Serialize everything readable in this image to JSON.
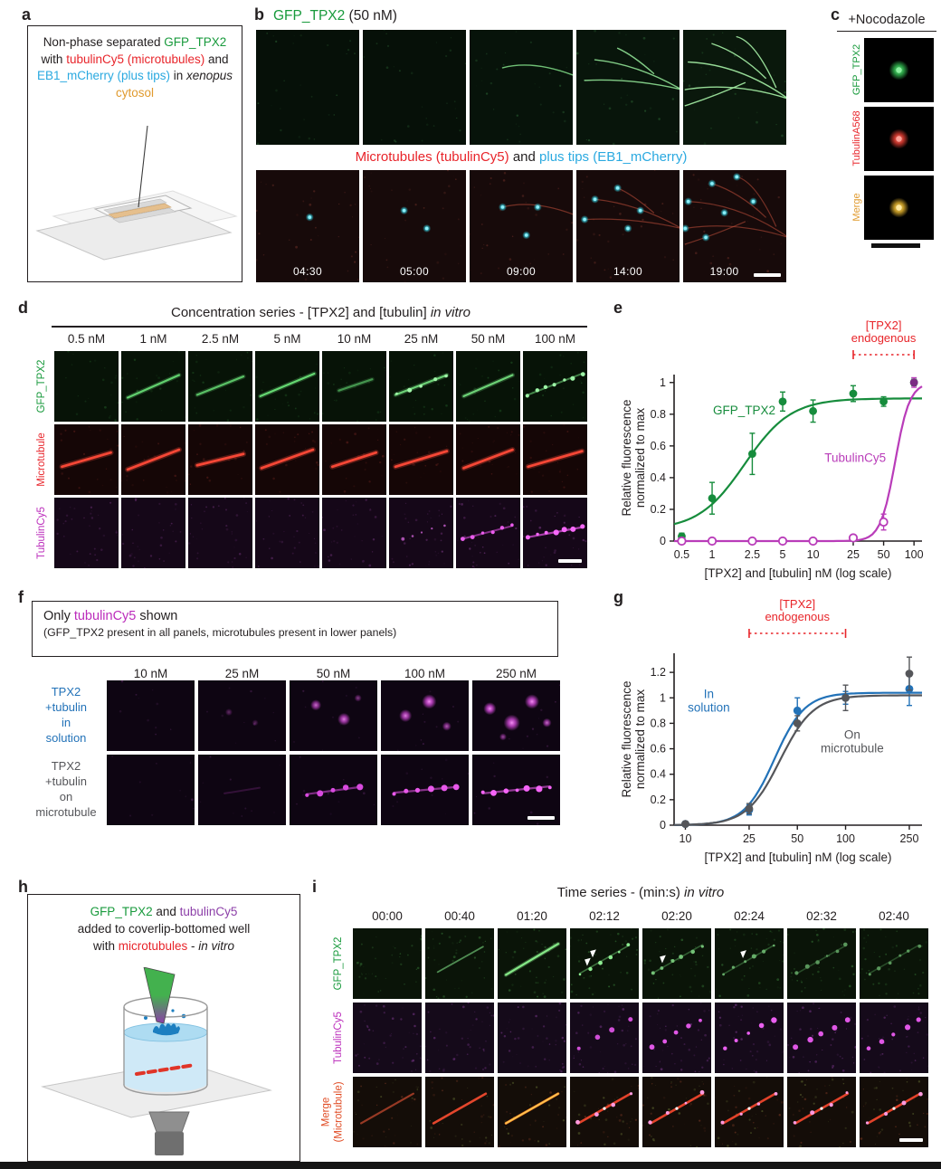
{
  "figure": {
    "type": "scientific-figure"
  },
  "colors": {
    "green": "#189a3c",
    "red": "#e8242a",
    "cyan": "#2aa9e0",
    "orange": "#e09a2e",
    "magenta": "#bb2cbb",
    "purple": "#8c3fa8",
    "blue": "#2272b8",
    "gray": "#55565a"
  },
  "a": {
    "label": "a",
    "caption": {
      "s1": "Non-phase separated ",
      "s2": "GFP_TPX2",
      "s3": " with ",
      "s4": "tubulinCy5 (microtubules)",
      "s5": " and ",
      "s6": "EB1_mCherry (plus tips)",
      "s7": " in ",
      "s8": "xenopus",
      "s9": " cytosol"
    }
  },
  "b": {
    "label": "b",
    "title": {
      "protein": "GFP_TPX2",
      "conc": " (50 nM)"
    },
    "subtitle": {
      "mt": "Microtubules (tubulinCy5)",
      "and": " and ",
      "tips": "plus tips (EB1_mCherry)"
    },
    "timestamps": [
      "04:30",
      "05:00",
      "09:00",
      "14:00",
      "19:00"
    ]
  },
  "c": {
    "label": "c",
    "title": "+Nocodazole",
    "rows": [
      {
        "label": "GFP_TPX2"
      },
      {
        "label": "TubulinA568"
      },
      {
        "label": "Merge"
      }
    ]
  },
  "d": {
    "label": "d",
    "title": "Concentration series - [TPX2] and [tubulin] ",
    "title_italic": "in vitro",
    "concentrations": [
      "0.5 nM",
      "1 nM",
      "2.5 nM",
      "5 nM",
      "10 nM",
      "25 nM",
      "50 nM",
      "100 nM"
    ],
    "rows": [
      {
        "label": "GFP_TPX2"
      },
      {
        "label": "Microtubule"
      },
      {
        "label": "TubulinCy5"
      }
    ]
  },
  "e": {
    "label": "e"
  },
  "f": {
    "label": "f",
    "box_line1": {
      "pre": "Only ",
      "hl": "tubulinCy5",
      "post": " shown"
    },
    "box_line2": "(GFP_TPX2 present in all panels, microtubules present in lower panels)",
    "concentrations": [
      "10 nM",
      "25 nM",
      "50 nM",
      "100 nM",
      "250 nM"
    ],
    "rows": [
      {
        "lines": [
          "TPX2",
          "+tubulin",
          "in",
          "solution"
        ]
      },
      {
        "lines": [
          "TPX2",
          "+tubulin",
          "on",
          "microtubule"
        ]
      }
    ]
  },
  "g": {
    "label": "g"
  },
  "h": {
    "label": "h",
    "caption": {
      "l1a": "GFP_TPX2",
      "l1b": " and ",
      "l1c": "tubulinCy5",
      "l2": "added to coverlip-bottomed well",
      "l3a": "with ",
      "l3b": "microtubules",
      "l3c": " - ",
      "l3d": "in vitro"
    }
  },
  "i": {
    "label": "i",
    "title": "Time series - (min:s) ",
    "title_italic": "in vitro",
    "times": [
      "00:00",
      "00:40",
      "01:20",
      "02:12",
      "02:20",
      "02:24",
      "02:32",
      "02:40"
    ],
    "rows": [
      {
        "label": "GFP_TPX2"
      },
      {
        "label": "TubulinCy5"
      },
      {
        "label": "Merge",
        "label2": "(Microtubule)"
      }
    ]
  },
  "chart_data": [
    {
      "id": "e",
      "type": "line",
      "x": [
        0.5,
        1,
        2.5,
        5,
        10,
        25,
        50,
        100
      ],
      "xlim": [
        0.42,
        120
      ],
      "ylim": [
        0,
        1.05
      ],
      "xticks": [
        0.5,
        1,
        2.5,
        5,
        10,
        25,
        50,
        100
      ],
      "xtick_labels": [
        "0.5",
        "1",
        "2.5",
        "5",
        "10",
        "25",
        "50",
        "100"
      ],
      "yticks": [
        0,
        0.2,
        0.4,
        0.6,
        0.8,
        1
      ],
      "ytick_labels": [
        "0",
        "0.2",
        "0.4",
        "0.6",
        "0.8",
        "1"
      ],
      "xlabel": "[TPX2] and [tubulin] nM (log scale)",
      "ylabel_lines": [
        "Relative fluorescence",
        "normalized to max"
      ],
      "legend_position": "inline",
      "grid": false,
      "series": [
        {
          "name": "GFP_TPX2",
          "color": "#168c3c",
          "marker": "filled",
          "values": [
            0.03,
            0.27,
            0.55,
            0.88,
            0.82,
            0.93,
            0.88,
            1.0
          ],
          "err": [
            0.02,
            0.1,
            0.13,
            0.06,
            0.07,
            0.05,
            0.03,
            0.02
          ],
          "fit": {
            "base": 0.07,
            "ymax": 0.9,
            "ec50": 2.1,
            "hill": 1.9
          },
          "label_pos": {
            "x": 1.02,
            "y": 0.8
          }
        },
        {
          "name": "TubulinCy5",
          "color": "#b93cb9",
          "marker": "open",
          "last_filled": true,
          "values": [
            0,
            0,
            0,
            0,
            0,
            0.02,
            0.12,
            1.0
          ],
          "err": [
            0,
            0,
            0,
            0,
            0,
            0.012,
            0.05,
            0.03
          ],
          "fit": {
            "base": 0.0,
            "ymax": 1.0,
            "ec50": 65,
            "hill": 6
          },
          "label_pos": {
            "x": 13,
            "y": 0.5
          }
        }
      ],
      "annotation": {
        "text_lines": [
          "[TPX2]",
          "endogenous"
        ],
        "color": "#e8252a",
        "x1": 25,
        "x2": 100
      }
    },
    {
      "id": "g",
      "type": "line",
      "x": [
        10,
        25,
        50,
        100,
        250
      ],
      "xlim": [
        8.5,
        300
      ],
      "ylim": [
        0,
        1.35
      ],
      "xticks": [
        10,
        25,
        50,
        100,
        250
      ],
      "xtick_labels": [
        "10",
        "25",
        "50",
        "100",
        "250"
      ],
      "yticks": [
        0,
        0.2,
        0.4,
        0.6,
        0.8,
        1,
        1.2
      ],
      "ytick_labels": [
        "0",
        "0.2",
        "0.4",
        "0.6",
        "0.8",
        "1",
        "1.2"
      ],
      "xlabel": "[TPX2] and [tubulin] nM (log scale)",
      "ylabel_lines": [
        "Relative fluorescence",
        "normalized to max"
      ],
      "legend_position": "inline",
      "grid": false,
      "series": [
        {
          "name": "In solution",
          "color": "#2272b8",
          "marker": "filled",
          "label_lines": [
            "In",
            "solution"
          ],
          "values": [
            0.01,
            0.12,
            0.9,
            1.0,
            1.07
          ],
          "err": [
            0.01,
            0.04,
            0.1,
            0.05,
            0.13
          ],
          "fit": {
            "base": 0,
            "ymax": 1.04,
            "ec50": 36,
            "hill": 4.6
          },
          "label_pos": {
            "x": 14,
            "y": 1.0
          }
        },
        {
          "name": "On microtubule",
          "color": "#55565a",
          "marker": "filled",
          "label_lines": [
            "On",
            "microtubule"
          ],
          "values": [
            0.01,
            0.13,
            0.8,
            1.0,
            1.19
          ],
          "err": [
            0.01,
            0.04,
            0.06,
            0.1,
            0.13
          ],
          "fit": {
            "base": 0,
            "ymax": 1.02,
            "ec50": 39,
            "hill": 4.2
          },
          "label_pos": {
            "x": 110,
            "y": 0.68
          }
        }
      ],
      "annotation": {
        "text_lines": [
          "[TPX2]",
          "endogenous"
        ],
        "color": "#e8252a",
        "x1": 25,
        "x2": 100
      }
    }
  ]
}
